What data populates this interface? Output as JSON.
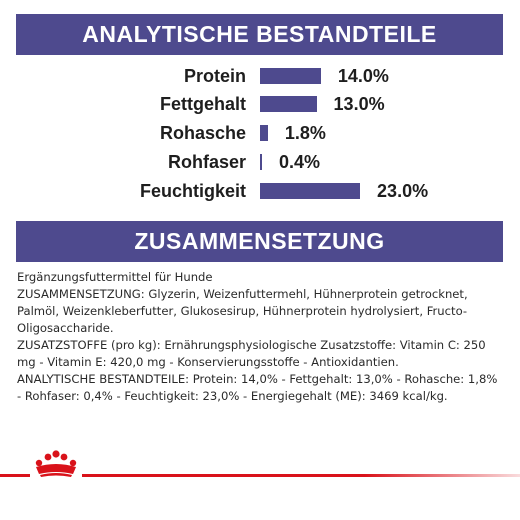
{
  "analytical": {
    "title": "ANALYTISCHE BESTANDTEILE",
    "rows": [
      {
        "label": "Protein",
        "value": "14.0%",
        "percent": 14.0
      },
      {
        "label": "Fettgehalt",
        "value": "13.0%",
        "percent": 13.0
      },
      {
        "label": "Rohasche",
        "value": "1.8%",
        "percent": 1.8
      },
      {
        "label": "Rohfaser",
        "value": "0.4%",
        "percent": 0.4
      },
      {
        "label": "Feuchtigkeit",
        "value": "23.0%",
        "percent": 23.0
      }
    ]
  },
  "composition": {
    "title": "ZUSAMMENSETZUNG",
    "paragraphs": [
      "Ergänzungsfuttermittel für Hunde",
      "ZUSAMMENSETZUNG: Glyzerin, Weizenfuttermehl, Hühnerprotein getrocknet, Palmöl, Weizenkleberfutter, Glukosesirup, Hühnerprotein hydrolysiert, Fructo-Oligosaccharide.",
      "ZUSATZSTOFFE (pro kg): Ernährungsphysiologische Zusatzstoffe: Vitamin C: 250 mg - Vitamin E: 420,0 mg - Konservierungsstoffe - Antioxidantien.",
      "ANALYTISCHE BESTANDTEILE: Protein: 14,0% - Fettgehalt: 13,0% - Rohasche: 1,8% - Rohfaser: 0,4% - Feuchtigkeit: 23,0% - Energiegehalt (ME): 3469 kcal/kg."
    ]
  },
  "footer": {
    "logo": "royal-canin-crown-icon",
    "accent_color": "#d9121a",
    "brand_color": "#4e4a8e"
  }
}
